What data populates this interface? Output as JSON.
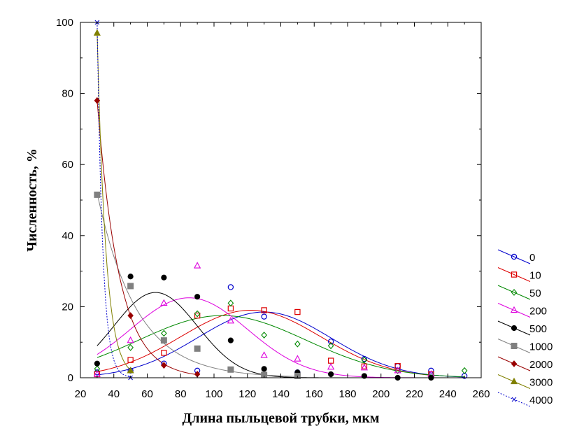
{
  "chart_data": {
    "type": "scatter",
    "xlabel": "Длина пыльцевой трубки, мкм",
    "ylabel": "Численность, %",
    "xlim": [
      20,
      260
    ],
    "ylim": [
      0,
      100
    ],
    "xticks": [
      "20",
      "40",
      "60",
      "80",
      "100",
      "120",
      "140",
      "160",
      "180",
      "200",
      "220",
      "240",
      "260"
    ],
    "yticks": [
      "0",
      "20",
      "40",
      "60",
      "80",
      "100"
    ],
    "grid": false,
    "legend": "right",
    "series": [
      {
        "name": "0",
        "color": "#0000cc",
        "marker": "circle-open",
        "x": [
          30,
          50,
          70,
          90,
          110,
          130,
          150,
          170,
          190,
          210,
          230,
          250
        ],
        "y": [
          1.5,
          2,
          4,
          2,
          25.5,
          17.2,
          1.5,
          10.2,
          5.3,
          3.3,
          2,
          0.5
        ],
        "curve": {
          "type": "gauss",
          "a": 18.5,
          "mu": 130,
          "sigma": 40
        }
      },
      {
        "name": "10",
        "color": "#dd0000",
        "marker": "square-open",
        "x": [
          30,
          50,
          70,
          90,
          110,
          130,
          150,
          170,
          190,
          210,
          230
        ],
        "y": [
          1,
          5,
          7,
          17.5,
          19.5,
          19,
          18.5,
          4.8,
          3.2,
          3.3,
          1
        ],
        "curve": {
          "type": "gauss",
          "a": 19,
          "mu": 122,
          "sigma": 42
        }
      },
      {
        "name": "50",
        "color": "#008800",
        "marker": "diamond-open",
        "x": [
          30,
          50,
          70,
          90,
          110,
          130,
          150,
          170,
          190,
          210,
          230,
          250
        ],
        "y": [
          2.5,
          8.5,
          12.5,
          18,
          21,
          12,
          9.5,
          9,
          5,
          2,
          1,
          2
        ],
        "curve": {
          "type": "gauss",
          "a": 17.5,
          "mu": 105,
          "sigma": 50
        }
      },
      {
        "name": "200",
        "color": "#dd00dd",
        "marker": "triangle-open",
        "x": [
          30,
          50,
          70,
          90,
          110,
          130,
          150,
          170,
          190,
          210,
          230
        ],
        "y": [
          1,
          10.5,
          21,
          31.5,
          16,
          6.3,
          5.3,
          3,
          2.8,
          2,
          1
        ],
        "curve": {
          "type": "gauss",
          "a": 22.5,
          "mu": 85,
          "sigma": 35
        }
      },
      {
        "name": "500",
        "color": "#000000",
        "marker": "circle-filled",
        "x": [
          30,
          50,
          70,
          90,
          110,
          130,
          150,
          170,
          190,
          210,
          230
        ],
        "y": [
          4,
          28.5,
          28.2,
          22.8,
          10.5,
          2.5,
          1.5,
          1,
          0.5,
          0,
          0
        ],
        "curve": {
          "type": "gauss",
          "a": 24,
          "mu": 65,
          "sigma": 25
        }
      },
      {
        "name": "1000",
        "color": "#808080",
        "marker": "square-filled",
        "x": [
          30,
          50,
          70,
          90,
          110,
          130,
          150
        ],
        "y": [
          51.5,
          25.8,
          10.5,
          8.2,
          2.3,
          0.8,
          0.5
        ],
        "curve": {
          "type": "exp",
          "a": 52,
          "x0": 30,
          "k": 0.042
        }
      },
      {
        "name": "2000",
        "color": "#990000",
        "marker": "diamond-filled",
        "x": [
          30,
          50,
          70,
          90
        ],
        "y": [
          78,
          17.5,
          3.5,
          1
        ],
        "curve": {
          "type": "exp",
          "a": 78,
          "x0": 30,
          "k": 0.075
        }
      },
      {
        "name": "3000",
        "color": "#808000",
        "marker": "triangle-filled",
        "x": [
          30,
          50
        ],
        "y": [
          97,
          2
        ],
        "curve": {
          "type": "exp",
          "a": 97,
          "x0": 30,
          "k": 0.19
        }
      },
      {
        "name": "4000",
        "color": "#0000cc",
        "marker": "cross",
        "x": [
          30,
          50
        ],
        "y": [
          100,
          0
        ],
        "curve": {
          "type": "exp",
          "a": 100,
          "x0": 30,
          "k": 0.3
        }
      }
    ]
  }
}
